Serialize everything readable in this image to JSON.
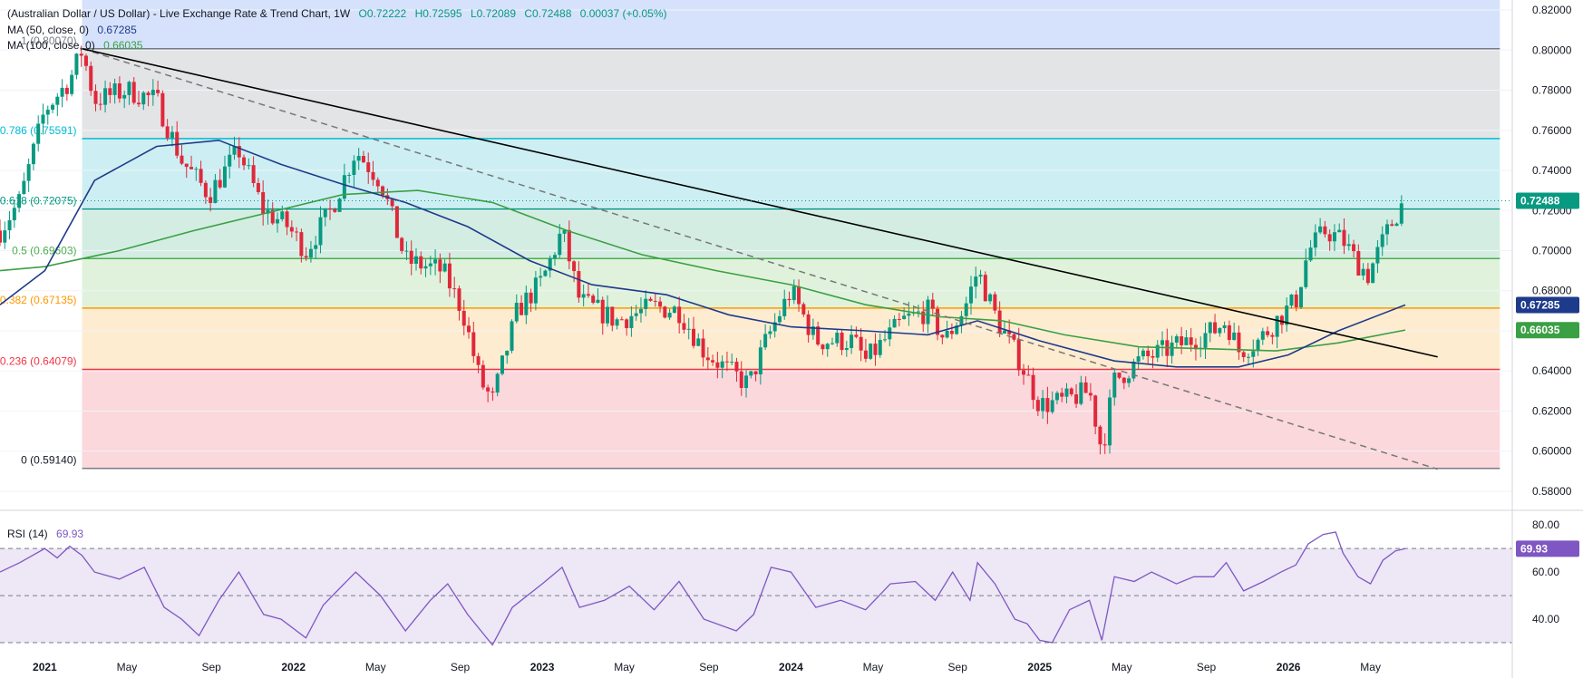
{
  "legend": {
    "title": "(Australian Dollar / US Dollar) - Live Exchange Rate & Trend Chart, 1W",
    "open": "O0.72222",
    "high": "H0.72595",
    "low": "L0.72089",
    "close": "C0.72488",
    "change": "0.00037 (+0.05%)",
    "ma50_label": "MA (50, close, 0)",
    "ma50_value": "0.67285",
    "ma100_label": "MA (100, close, 0)",
    "ma100_value": "0.66035",
    "rsi_label": "RSI (14)",
    "rsi_value": "69.93"
  },
  "colors": {
    "up": "#089981",
    "down": "#e0283a",
    "ma50": "#1e3a8a",
    "ma100": "#3aa043",
    "rsi": "#7e57c2",
    "trendline": "#000000",
    "dashed_trend": "#777777"
  },
  "chart_data": [
    {
      "type": "candlestick",
      "title": "(Australian Dollar / US Dollar) - Live Exchange Rate & Trend Chart, 1W",
      "x_tick_labels": [
        "2021",
        "May",
        "Sep",
        "2022",
        "May",
        "Sep",
        "2023",
        "May",
        "Sep",
        "2024",
        "May",
        "Sep",
        "2025",
        "May",
        "Sep",
        "2026",
        "May"
      ],
      "y_tick_labels": [
        "0.58000",
        "0.60000",
        "0.62000",
        "0.64000",
        "0.66000",
        "0.68000",
        "0.70000",
        "0.72000",
        "0.74000",
        "0.76000",
        "0.78000",
        "0.80000",
        "0.82000"
      ],
      "ylim": [
        0.575,
        0.825
      ],
      "last_price": "0.72488",
      "ma50_last": "0.67285",
      "ma100_last": "0.66035",
      "fibonacci": [
        {
          "label": "0 (0.59140)",
          "ratio": 0,
          "price": 0.5914,
          "line": "#787b86",
          "fill": "#fbd8dc",
          "text": "#131722"
        },
        {
          "label": "0.236 (0.64079)",
          "ratio": 0.236,
          "price": 0.64079,
          "line": "#f23645",
          "fill": "#feecd1",
          "text": "#f23645"
        },
        {
          "label": "0.382 (0.67135)",
          "ratio": 0.382,
          "price": 0.67135,
          "line": "#ff9800",
          "fill": "#e0f2dc",
          "text": "#ff9800"
        },
        {
          "label": "0.5 (0.69603)",
          "ratio": 0.5,
          "price": 0.69603,
          "line": "#4caf50",
          "fill": "#d4ede3",
          "text": "#4caf50"
        },
        {
          "label": "0.618 (0.72075)",
          "ratio": 0.618,
          "price": 0.72075,
          "line": "#089981",
          "fill": "#cdeff3",
          "text": "#089981"
        },
        {
          "label": "0.786 (0.75591)",
          "ratio": 0.786,
          "price": 0.75591,
          "line": "#00bcd4",
          "fill": "#e3e4e6",
          "text": "#00bcd4"
        },
        {
          "label": "1 (0.80070)",
          "ratio": 1,
          "price": 0.8007,
          "line": "#787b86",
          "fill": "#d6e2fb",
          "text": "#787b86"
        }
      ],
      "anchors": [
        {
          "t": 2020.82,
          "p": 0.71
        },
        {
          "t": 2020.9,
          "p": 0.725
        },
        {
          "t": 2021.0,
          "p": 0.77
        },
        {
          "t": 2021.1,
          "p": 0.785
        },
        {
          "t": 2021.15,
          "p": 0.8
        },
        {
          "t": 2021.2,
          "p": 0.775
        },
        {
          "t": 2021.33,
          "p": 0.78
        },
        {
          "t": 2021.45,
          "p": 0.775
        },
        {
          "t": 2021.55,
          "p": 0.745
        },
        {
          "t": 2021.66,
          "p": 0.728
        },
        {
          "t": 2021.78,
          "p": 0.75
        },
        {
          "t": 2021.88,
          "p": 0.72
        },
        {
          "t": 2021.97,
          "p": 0.713
        },
        {
          "t": 2022.05,
          "p": 0.7
        },
        {
          "t": 2022.15,
          "p": 0.72
        },
        {
          "t": 2022.25,
          "p": 0.75
        },
        {
          "t": 2022.35,
          "p": 0.735
        },
        {
          "t": 2022.45,
          "p": 0.695
        },
        {
          "t": 2022.6,
          "p": 0.69
        },
        {
          "t": 2022.68,
          "p": 0.67
        },
        {
          "t": 2022.75,
          "p": 0.635
        },
        {
          "t": 2022.8,
          "p": 0.625
        },
        {
          "t": 2022.9,
          "p": 0.67
        },
        {
          "t": 2023.0,
          "p": 0.685
        },
        {
          "t": 2023.08,
          "p": 0.71
        },
        {
          "t": 2023.15,
          "p": 0.675
        },
        {
          "t": 2023.3,
          "p": 0.665
        },
        {
          "t": 2023.45,
          "p": 0.672
        },
        {
          "t": 2023.55,
          "p": 0.67
        },
        {
          "t": 2023.65,
          "p": 0.65
        },
        {
          "t": 2023.75,
          "p": 0.64
        },
        {
          "t": 2023.83,
          "p": 0.633
        },
        {
          "t": 2023.9,
          "p": 0.655
        },
        {
          "t": 2024.0,
          "p": 0.68
        },
        {
          "t": 2024.1,
          "p": 0.655
        },
        {
          "t": 2024.25,
          "p": 0.655
        },
        {
          "t": 2024.3,
          "p": 0.645
        },
        {
          "t": 2024.45,
          "p": 0.665
        },
        {
          "t": 2024.55,
          "p": 0.67
        },
        {
          "t": 2024.62,
          "p": 0.655
        },
        {
          "t": 2024.7,
          "p": 0.672
        },
        {
          "t": 2024.75,
          "p": 0.69
        },
        {
          "t": 2024.83,
          "p": 0.665
        },
        {
          "t": 2024.92,
          "p": 0.645
        },
        {
          "t": 2025.0,
          "p": 0.623
        },
        {
          "t": 2025.1,
          "p": 0.625
        },
        {
          "t": 2025.2,
          "p": 0.63
        },
        {
          "t": 2025.25,
          "p": 0.6
        },
        {
          "t": 2025.3,
          "p": 0.635
        },
        {
          "t": 2025.4,
          "p": 0.645
        },
        {
          "t": 2025.5,
          "p": 0.65
        },
        {
          "t": 2025.6,
          "p": 0.655
        },
        {
          "t": 2025.7,
          "p": 0.66
        },
        {
          "t": 2025.75,
          "p": 0.665
        },
        {
          "t": 2025.8,
          "p": 0.65
        },
        {
          "t": 2025.88,
          "p": 0.655
        },
        {
          "t": 2025.95,
          "p": 0.665
        },
        {
          "t": 2026.03,
          "p": 0.675
        },
        {
          "t": 2026.08,
          "p": 0.7
        },
        {
          "t": 2026.15,
          "p": 0.71
        },
        {
          "t": 2026.22,
          "p": 0.705
        },
        {
          "t": 2026.27,
          "p": 0.695
        },
        {
          "t": 2026.32,
          "p": 0.688
        },
        {
          "t": 2026.4,
          "p": 0.71
        },
        {
          "t": 2026.45,
          "p": 0.722
        },
        {
          "t": 2026.47,
          "p": 0.7249
        }
      ],
      "ma50": [
        {
          "t": 2020.82,
          "p": 0.673
        },
        {
          "t": 2021.0,
          "p": 0.69
        },
        {
          "t": 2021.2,
          "p": 0.735
        },
        {
          "t": 2021.45,
          "p": 0.752
        },
        {
          "t": 2021.7,
          "p": 0.755
        },
        {
          "t": 2021.95,
          "p": 0.743
        },
        {
          "t": 2022.2,
          "p": 0.733
        },
        {
          "t": 2022.45,
          "p": 0.724
        },
        {
          "t": 2022.7,
          "p": 0.712
        },
        {
          "t": 2022.95,
          "p": 0.695
        },
        {
          "t": 2023.2,
          "p": 0.683
        },
        {
          "t": 2023.5,
          "p": 0.678
        },
        {
          "t": 2023.75,
          "p": 0.668
        },
        {
          "t": 2024.0,
          "p": 0.662
        },
        {
          "t": 2024.3,
          "p": 0.66
        },
        {
          "t": 2024.55,
          "p": 0.658
        },
        {
          "t": 2024.75,
          "p": 0.665
        },
        {
          "t": 2025.0,
          "p": 0.655
        },
        {
          "t": 2025.3,
          "p": 0.645
        },
        {
          "t": 2025.55,
          "p": 0.642
        },
        {
          "t": 2025.8,
          "p": 0.642
        },
        {
          "t": 2026.0,
          "p": 0.648
        },
        {
          "t": 2026.2,
          "p": 0.66
        },
        {
          "t": 2026.47,
          "p": 0.6729
        }
      ],
      "ma100": [
        {
          "t": 2020.82,
          "p": 0.69
        },
        {
          "t": 2021.0,
          "p": 0.692
        },
        {
          "t": 2021.3,
          "p": 0.7
        },
        {
          "t": 2021.6,
          "p": 0.71
        },
        {
          "t": 2021.9,
          "p": 0.719
        },
        {
          "t": 2022.2,
          "p": 0.728
        },
        {
          "t": 2022.5,
          "p": 0.73
        },
        {
          "t": 2022.8,
          "p": 0.724
        },
        {
          "t": 2023.1,
          "p": 0.71
        },
        {
          "t": 2023.4,
          "p": 0.698
        },
        {
          "t": 2023.7,
          "p": 0.69
        },
        {
          "t": 2024.0,
          "p": 0.683
        },
        {
          "t": 2024.3,
          "p": 0.673
        },
        {
          "t": 2024.6,
          "p": 0.667
        },
        {
          "t": 2024.85,
          "p": 0.665
        },
        {
          "t": 2025.1,
          "p": 0.658
        },
        {
          "t": 2025.4,
          "p": 0.652
        },
        {
          "t": 2025.7,
          "p": 0.651
        },
        {
          "t": 2025.95,
          "p": 0.65
        },
        {
          "t": 2026.2,
          "p": 0.654
        },
        {
          "t": 2026.47,
          "p": 0.6604
        }
      ],
      "trendline": {
        "start": {
          "t": 2021.15,
          "p": 0.8007
        },
        "end": {
          "t": 2026.6,
          "p": 0.647
        }
      },
      "dashed_trendline": {
        "start": {
          "t": 2021.15,
          "p": 0.8007
        },
        "end": {
          "t": 2026.6,
          "p": 0.591
        }
      }
    },
    {
      "type": "line",
      "title": "RSI (14)",
      "y_tick_labels": [
        "40.00",
        "60.00",
        "80.00"
      ],
      "ylim": [
        25,
        82
      ],
      "levels": [
        30,
        50,
        70
      ],
      "last_value": "69.93",
      "points": [
        {
          "t": 2020.82,
          "v": 60
        },
        {
          "t": 2020.9,
          "v": 64
        },
        {
          "t": 2021.0,
          "v": 70
        },
        {
          "t": 2021.05,
          "v": 66
        },
        {
          "t": 2021.1,
          "v": 71
        },
        {
          "t": 2021.15,
          "v": 67
        },
        {
          "t": 2021.2,
          "v": 60
        },
        {
          "t": 2021.3,
          "v": 57
        },
        {
          "t": 2021.4,
          "v": 62
        },
        {
          "t": 2021.48,
          "v": 45
        },
        {
          "t": 2021.55,
          "v": 40
        },
        {
          "t": 2021.62,
          "v": 33
        },
        {
          "t": 2021.7,
          "v": 48
        },
        {
          "t": 2021.78,
          "v": 60
        },
        {
          "t": 2021.88,
          "v": 42
        },
        {
          "t": 2021.95,
          "v": 40
        },
        {
          "t": 2022.05,
          "v": 32
        },
        {
          "t": 2022.12,
          "v": 46
        },
        {
          "t": 2022.25,
          "v": 60
        },
        {
          "t": 2022.35,
          "v": 50
        },
        {
          "t": 2022.45,
          "v": 35
        },
        {
          "t": 2022.55,
          "v": 48
        },
        {
          "t": 2022.62,
          "v": 55
        },
        {
          "t": 2022.7,
          "v": 42
        },
        {
          "t": 2022.8,
          "v": 29
        },
        {
          "t": 2022.88,
          "v": 45
        },
        {
          "t": 2023.0,
          "v": 55
        },
        {
          "t": 2023.08,
          "v": 62
        },
        {
          "t": 2023.15,
          "v": 45
        },
        {
          "t": 2023.25,
          "v": 48
        },
        {
          "t": 2023.35,
          "v": 54
        },
        {
          "t": 2023.45,
          "v": 44
        },
        {
          "t": 2023.55,
          "v": 56
        },
        {
          "t": 2023.65,
          "v": 40
        },
        {
          "t": 2023.78,
          "v": 35
        },
        {
          "t": 2023.85,
          "v": 42
        },
        {
          "t": 2023.92,
          "v": 62
        },
        {
          "t": 2024.0,
          "v": 60
        },
        {
          "t": 2024.1,
          "v": 45
        },
        {
          "t": 2024.2,
          "v": 48
        },
        {
          "t": 2024.3,
          "v": 44
        },
        {
          "t": 2024.4,
          "v": 55
        },
        {
          "t": 2024.5,
          "v": 56
        },
        {
          "t": 2024.58,
          "v": 48
        },
        {
          "t": 2024.65,
          "v": 60
        },
        {
          "t": 2024.72,
          "v": 48
        },
        {
          "t": 2024.75,
          "v": 64
        },
        {
          "t": 2024.82,
          "v": 55
        },
        {
          "t": 2024.9,
          "v": 40
        },
        {
          "t": 2024.95,
          "v": 38
        },
        {
          "t": 2025.0,
          "v": 31
        },
        {
          "t": 2025.05,
          "v": 30
        },
        {
          "t": 2025.12,
          "v": 44
        },
        {
          "t": 2025.2,
          "v": 48
        },
        {
          "t": 2025.25,
          "v": 31
        },
        {
          "t": 2025.3,
          "v": 58
        },
        {
          "t": 2025.38,
          "v": 56
        },
        {
          "t": 2025.45,
          "v": 60
        },
        {
          "t": 2025.55,
          "v": 55
        },
        {
          "t": 2025.62,
          "v": 58
        },
        {
          "t": 2025.7,
          "v": 58
        },
        {
          "t": 2025.75,
          "v": 64
        },
        {
          "t": 2025.82,
          "v": 52
        },
        {
          "t": 2025.9,
          "v": 56
        },
        {
          "t": 2025.97,
          "v": 60
        },
        {
          "t": 2026.03,
          "v": 63
        },
        {
          "t": 2026.08,
          "v": 72
        },
        {
          "t": 2026.14,
          "v": 76
        },
        {
          "t": 2026.19,
          "v": 77
        },
        {
          "t": 2026.22,
          "v": 68
        },
        {
          "t": 2026.28,
          "v": 58
        },
        {
          "t": 2026.33,
          "v": 55
        },
        {
          "t": 2026.38,
          "v": 65
        },
        {
          "t": 2026.43,
          "v": 69
        },
        {
          "t": 2026.47,
          "v": 69.93
        }
      ]
    }
  ]
}
